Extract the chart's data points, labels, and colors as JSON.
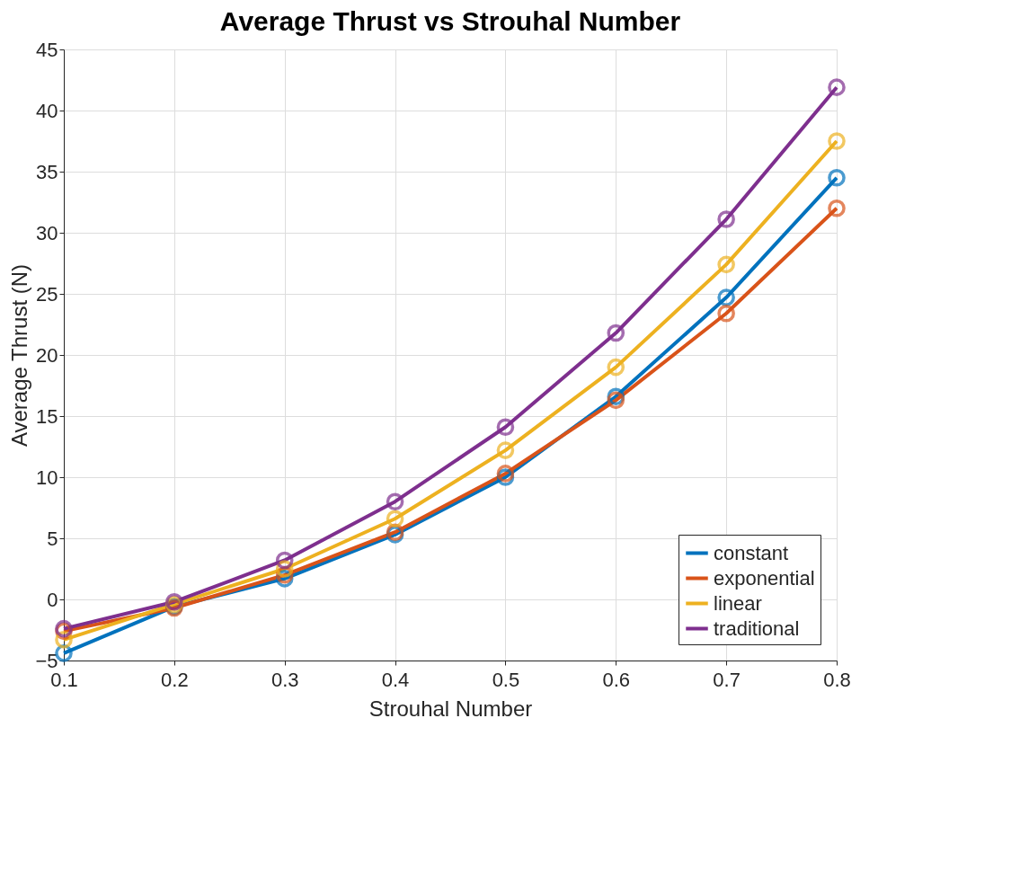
{
  "chart_data": {
    "type": "line",
    "title": "Average Thrust vs Strouhal Number",
    "xlabel": "Strouhal Number",
    "ylabel": "Average Thrust (N)",
    "x": [
      0.1,
      0.2,
      0.3,
      0.4,
      0.5,
      0.6,
      0.7,
      0.8
    ],
    "series": [
      {
        "name": "constant",
        "color": "#0072bd",
        "values": [
          -4.4,
          -0.6,
          1.7,
          5.3,
          10.0,
          16.6,
          24.7,
          34.5
        ]
      },
      {
        "name": "exponential",
        "color": "#d95319",
        "values": [
          -2.6,
          -0.7,
          2.0,
          5.5,
          10.3,
          16.3,
          23.4,
          32.0
        ]
      },
      {
        "name": "linear",
        "color": "#edb120",
        "values": [
          -3.3,
          -0.4,
          2.5,
          6.6,
          12.2,
          19.0,
          27.4,
          37.5
        ]
      },
      {
        "name": "traditional",
        "color": "#7e2f8e",
        "values": [
          -2.4,
          -0.2,
          3.2,
          8.0,
          14.1,
          21.8,
          31.1,
          41.9
        ]
      }
    ],
    "xlim": [
      0.1,
      0.8
    ],
    "xticks": [
      0.1,
      0.2,
      0.3,
      0.4,
      0.5,
      0.6,
      0.7,
      0.8
    ],
    "ylim": [
      -5,
      45
    ],
    "yticks": [
      -5,
      0,
      5,
      10,
      15,
      20,
      25,
      30,
      35,
      40,
      45
    ],
    "grid": true,
    "legend": "bottom right",
    "marker": "circle",
    "line_style": "solid"
  }
}
